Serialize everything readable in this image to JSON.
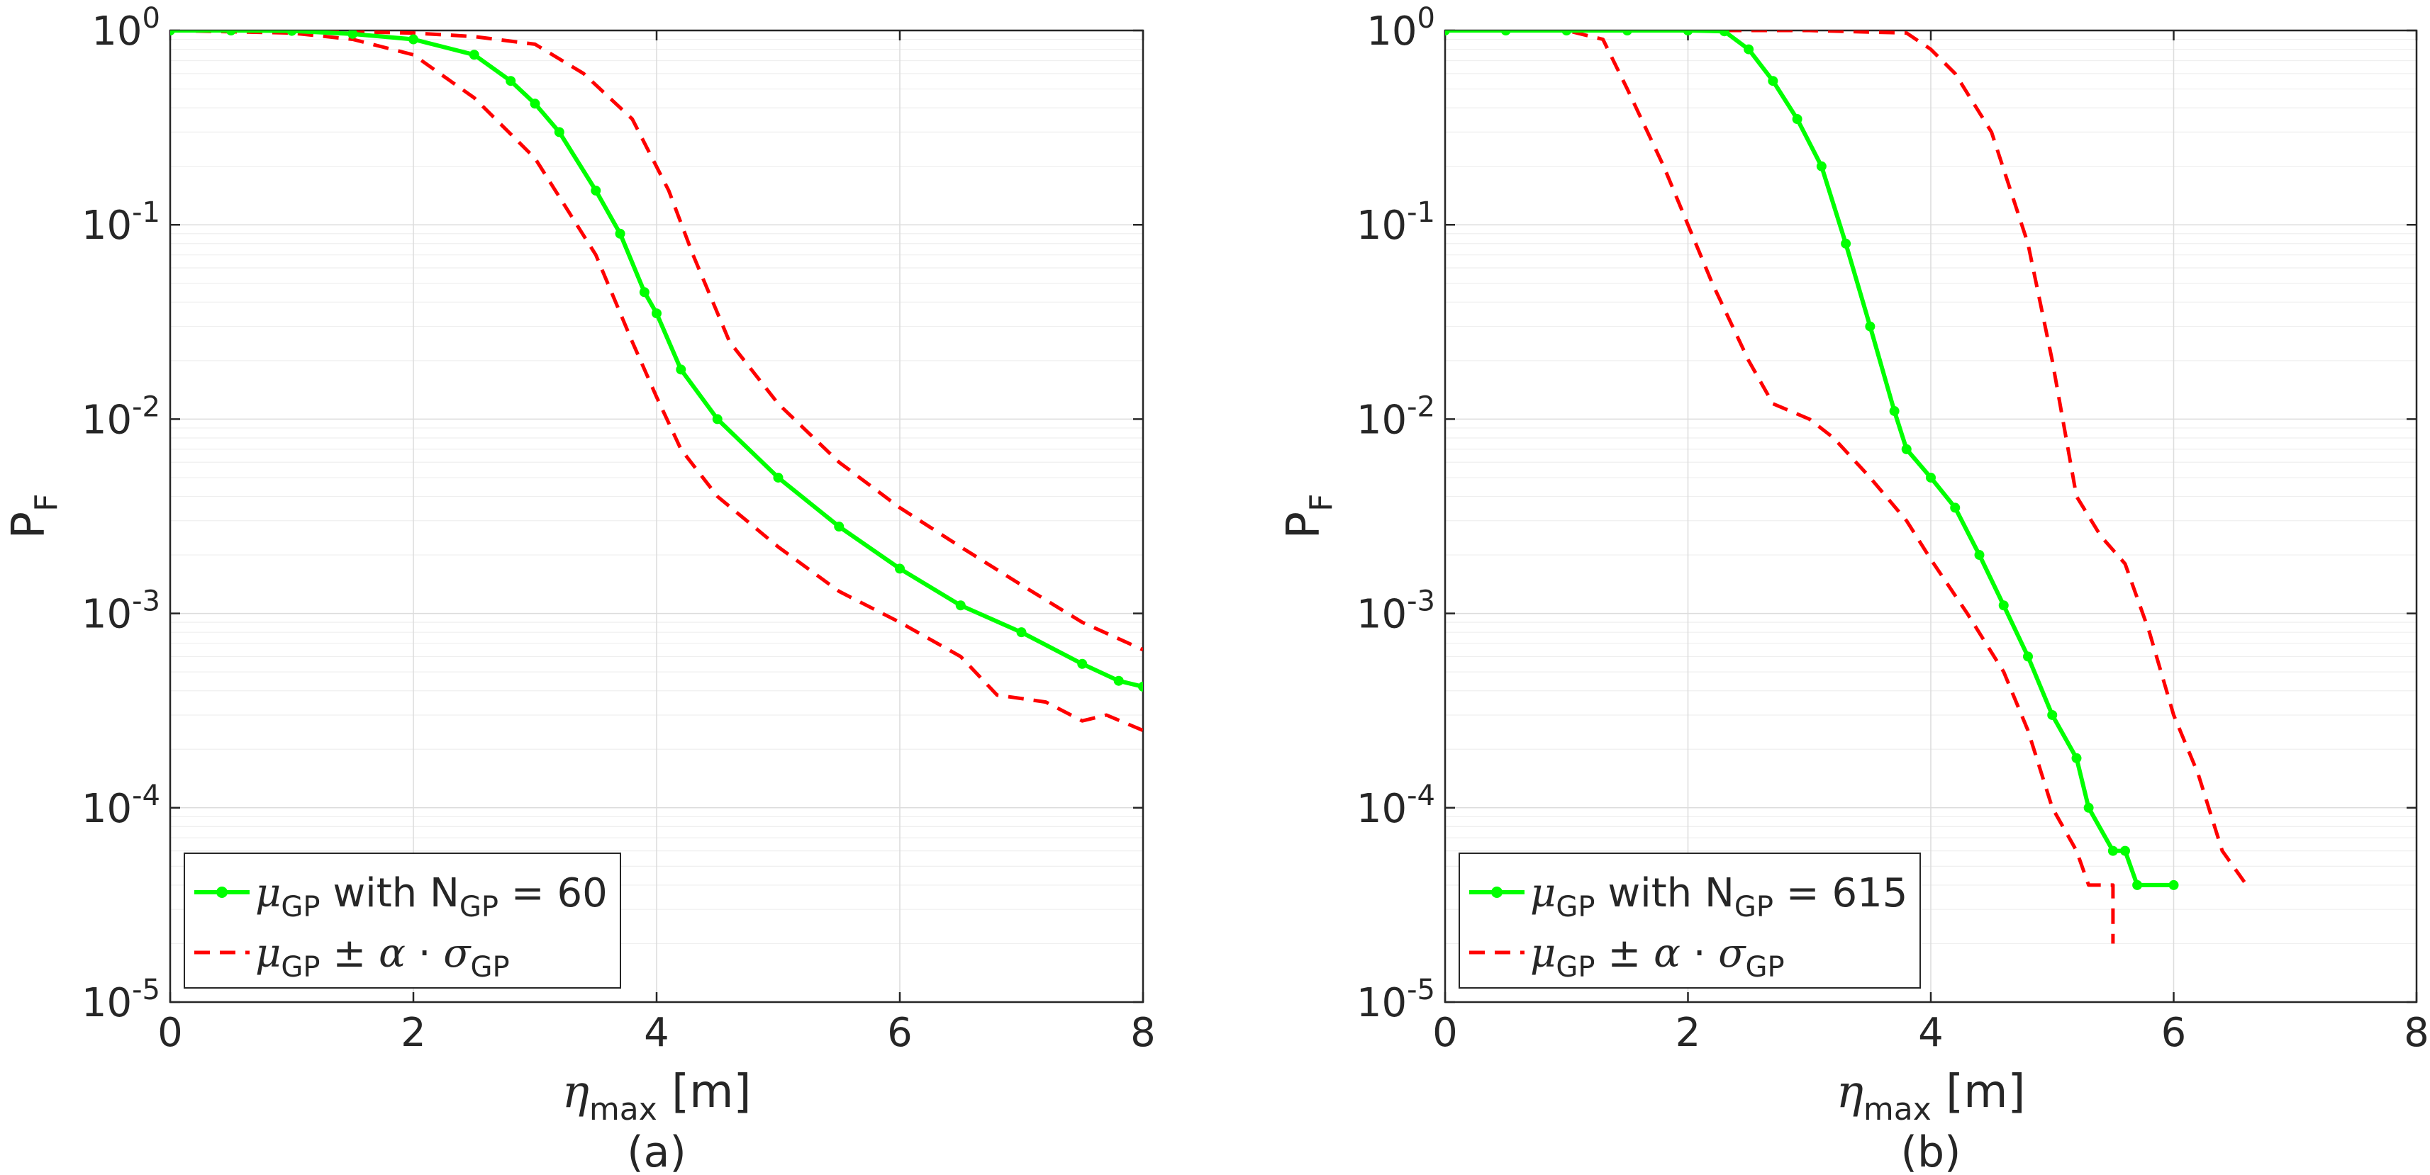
{
  "colors": {
    "mean": "#00ff00",
    "bounds": "#ff0000",
    "axis": "#262626",
    "grid": "#dcdcdc"
  },
  "chart_data": [
    {
      "panel": "a",
      "type": "line",
      "caption": "(a)",
      "xlabel": {
        "symbol": "η",
        "sub": "max",
        "unit": " [m]"
      },
      "ylabel": {
        "main": "P",
        "sub": "F"
      },
      "xlim": [
        0,
        8
      ],
      "ylim": [
        1e-05,
        1
      ],
      "yscale": "log",
      "xticks": [
        "0",
        "2",
        "4",
        "6",
        "8"
      ],
      "yticks": [
        {
          "base": "10",
          "exp": "0"
        },
        {
          "base": "10",
          "exp": "-1"
        },
        {
          "base": "10",
          "exp": "-2"
        },
        {
          "base": "10",
          "exp": "-3"
        },
        {
          "base": "10",
          "exp": "-4"
        },
        {
          "base": "10",
          "exp": "-5"
        }
      ],
      "legend": {
        "position": "bottom-left",
        "entries": [
          {
            "symbol": "μ",
            "sub": "GP",
            "text": " with N",
            "sub2": "GP",
            "text2": " = 60"
          },
          {
            "symbol": "μ",
            "sub": "GP",
            "text": " ± ",
            "symbol2": "α",
            "text3": " · ",
            "symbol3": "σ",
            "sub3": "GP"
          }
        ]
      },
      "series": [
        {
          "name": "mean",
          "markers": true,
          "points": [
            [
              0,
              1
            ],
            [
              0.5,
              1
            ],
            [
              1,
              0.995
            ],
            [
              1.5,
              0.96
            ],
            [
              2,
              0.9
            ],
            [
              2.5,
              0.75
            ],
            [
              2.8,
              0.55
            ],
            [
              3,
              0.42
            ],
            [
              3.2,
              0.3
            ],
            [
              3.5,
              0.15
            ],
            [
              3.7,
              0.09
            ],
            [
              3.9,
              0.045
            ],
            [
              4,
              0.035
            ],
            [
              4.2,
              0.018
            ],
            [
              4.5,
              0.01
            ],
            [
              5,
              0.005
            ],
            [
              5.5,
              0.0028
            ],
            [
              6,
              0.0017
            ],
            [
              6.5,
              0.0011
            ],
            [
              7,
              0.0008
            ],
            [
              7.5,
              0.00055
            ],
            [
              7.8,
              0.00045
            ],
            [
              8,
              0.00042
            ]
          ]
        },
        {
          "name": "upper",
          "markers": false,
          "points": [
            [
              0,
              1
            ],
            [
              1,
              1
            ],
            [
              2,
              0.97
            ],
            [
              2.5,
              0.93
            ],
            [
              3,
              0.85
            ],
            [
              3.4,
              0.6
            ],
            [
              3.8,
              0.35
            ],
            [
              4.1,
              0.15
            ],
            [
              4.3,
              0.07
            ],
            [
              4.6,
              0.025
            ],
            [
              5,
              0.012
            ],
            [
              5.5,
              0.006
            ],
            [
              6,
              0.0035
            ],
            [
              6.5,
              0.0022
            ],
            [
              7,
              0.0014
            ],
            [
              7.5,
              0.0009
            ],
            [
              8,
              0.00065
            ]
          ]
        },
        {
          "name": "lower",
          "markers": false,
          "points": [
            [
              0,
              1
            ],
            [
              1,
              0.97
            ],
            [
              1.5,
              0.9
            ],
            [
              2,
              0.75
            ],
            [
              2.5,
              0.45
            ],
            [
              3,
              0.22
            ],
            [
              3.5,
              0.07
            ],
            [
              3.8,
              0.025
            ],
            [
              4,
              0.013
            ],
            [
              4.2,
              0.007
            ],
            [
              4.5,
              0.004
            ],
            [
              5,
              0.0022
            ],
            [
              5.5,
              0.0013
            ],
            [
              6,
              0.0009
            ],
            [
              6.5,
              0.0006
            ],
            [
              6.8,
              0.00038
            ],
            [
              7.2,
              0.00035
            ],
            [
              7.5,
              0.00028
            ],
            [
              7.7,
              0.0003
            ],
            [
              8,
              0.00025
            ]
          ]
        }
      ]
    },
    {
      "panel": "b",
      "type": "line",
      "caption": "(b)",
      "xlabel": {
        "symbol": "η",
        "sub": "max",
        "unit": " [m]"
      },
      "ylabel": {
        "main": "P",
        "sub": "F"
      },
      "xlim": [
        0,
        8
      ],
      "ylim": [
        1e-05,
        1
      ],
      "yscale": "log",
      "xticks": [
        "0",
        "2",
        "4",
        "6",
        "8"
      ],
      "yticks": [
        {
          "base": "10",
          "exp": "0"
        },
        {
          "base": "10",
          "exp": "-1"
        },
        {
          "base": "10",
          "exp": "-2"
        },
        {
          "base": "10",
          "exp": "-3"
        },
        {
          "base": "10",
          "exp": "-4"
        },
        {
          "base": "10",
          "exp": "-5"
        }
      ],
      "legend": {
        "position": "bottom-left",
        "entries": [
          {
            "symbol": "μ",
            "sub": "GP",
            "text": " with N",
            "sub2": "GP",
            "text2": " = 615"
          },
          {
            "symbol": "μ",
            "sub": "GP",
            "text": " ± ",
            "symbol2": "α",
            "text3": " · ",
            "symbol3": "σ",
            "sub3": "GP"
          }
        ]
      },
      "series": [
        {
          "name": "mean",
          "markers": true,
          "points": [
            [
              0,
              1
            ],
            [
              0.5,
              1
            ],
            [
              1,
              1
            ],
            [
              1.5,
              1
            ],
            [
              2,
              1
            ],
            [
              2.3,
              0.99
            ],
            [
              2.5,
              0.8
            ],
            [
              2.7,
              0.55
            ],
            [
              2.9,
              0.35
            ],
            [
              3.1,
              0.2
            ],
            [
              3.3,
              0.08
            ],
            [
              3.5,
              0.03
            ],
            [
              3.7,
              0.011
            ],
            [
              3.8,
              0.007
            ],
            [
              4,
              0.005
            ],
            [
              4.2,
              0.0035
            ],
            [
              4.4,
              0.002
            ],
            [
              4.6,
              0.0011
            ],
            [
              4.8,
              0.0006
            ],
            [
              5,
              0.0003
            ],
            [
              5.2,
              0.00018
            ],
            [
              5.3,
              0.0001
            ],
            [
              5.5,
              6e-05
            ],
            [
              5.6,
              6e-05
            ],
            [
              5.7,
              4e-05
            ],
            [
              6,
              4e-05
            ]
          ]
        },
        {
          "name": "upper",
          "markers": false,
          "points": [
            [
              0,
              1
            ],
            [
              1,
              1
            ],
            [
              2,
              1
            ],
            [
              3,
              1
            ],
            [
              3.8,
              0.97
            ],
            [
              4,
              0.8
            ],
            [
              4.2,
              0.6
            ],
            [
              4.5,
              0.3
            ],
            [
              4.8,
              0.08
            ],
            [
              5,
              0.02
            ],
            [
              5.2,
              0.004
            ],
            [
              5.4,
              0.0025
            ],
            [
              5.6,
              0.0018
            ],
            [
              5.8,
              0.0008
            ],
            [
              6,
              0.0003
            ],
            [
              6.2,
              0.00015
            ],
            [
              6.4,
              6e-05
            ],
            [
              6.6,
              4e-05
            ]
          ]
        },
        {
          "name": "lower",
          "markers": false,
          "points": [
            [
              0,
              1
            ],
            [
              1,
              1
            ],
            [
              1.3,
              0.9
            ],
            [
              1.5,
              0.5
            ],
            [
              1.8,
              0.2
            ],
            [
              2,
              0.1
            ],
            [
              2.2,
              0.05
            ],
            [
              2.5,
              0.02
            ],
            [
              2.7,
              0.012
            ],
            [
              3,
              0.01
            ],
            [
              3.2,
              0.008
            ],
            [
              3.5,
              0.005
            ],
            [
              3.8,
              0.003
            ],
            [
              4,
              0.0019
            ],
            [
              4.3,
              0.001
            ],
            [
              4.6,
              0.0005
            ],
            [
              4.8,
              0.00025
            ],
            [
              5,
              0.0001
            ],
            [
              5.2,
              6e-05
            ],
            [
              5.3,
              4e-05
            ],
            [
              5.5,
              4e-05
            ],
            [
              5.5,
              2e-05
            ]
          ]
        }
      ]
    }
  ]
}
